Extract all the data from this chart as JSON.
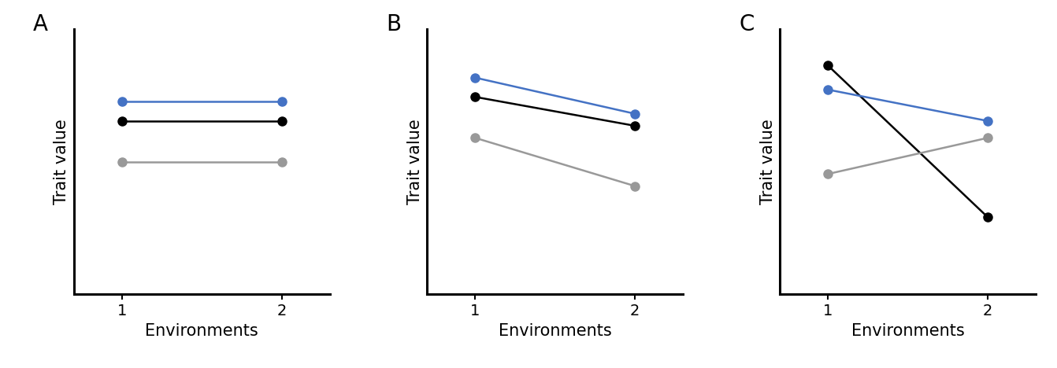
{
  "panels": [
    {
      "label": "A",
      "lines": [
        {
          "color": "#4472C4",
          "x": [
            1,
            2
          ],
          "y": [
            8.0,
            8.0
          ]
        },
        {
          "color": "#000000",
          "x": [
            1,
            2
          ],
          "y": [
            7.2,
            7.2
          ]
        },
        {
          "color": "#999999",
          "x": [
            1,
            2
          ],
          "y": [
            5.5,
            5.5
          ]
        }
      ]
    },
    {
      "label": "B",
      "lines": [
        {
          "color": "#4472C4",
          "x": [
            1,
            2
          ],
          "y": [
            9.0,
            7.5
          ]
        },
        {
          "color": "#000000",
          "x": [
            1,
            2
          ],
          "y": [
            8.2,
            7.0
          ]
        },
        {
          "color": "#999999",
          "x": [
            1,
            2
          ],
          "y": [
            6.5,
            4.5
          ]
        }
      ]
    },
    {
      "label": "C",
      "lines": [
        {
          "color": "#000000",
          "x": [
            1,
            2
          ],
          "y": [
            9.5,
            3.2
          ]
        },
        {
          "color": "#4472C4",
          "x": [
            1,
            2
          ],
          "y": [
            8.5,
            7.2
          ]
        },
        {
          "color": "#999999",
          "x": [
            1,
            2
          ],
          "y": [
            5.0,
            6.5
          ]
        }
      ]
    }
  ],
  "xlabel": "Environments",
  "ylabel": "Trait value",
  "xticks": [
    1,
    2
  ],
  "xticklabels": [
    "1",
    "2"
  ],
  "ylim": [
    0.0,
    11.0
  ],
  "xlim": [
    0.7,
    2.3
  ],
  "marker": "o",
  "markersize": 8,
  "linewidth": 1.8,
  "axis_label_fontsize": 15,
  "tick_fontsize": 14,
  "panel_label_fontsize": 20,
  "background_color": "#ffffff",
  "spine_linewidth": 2.2
}
